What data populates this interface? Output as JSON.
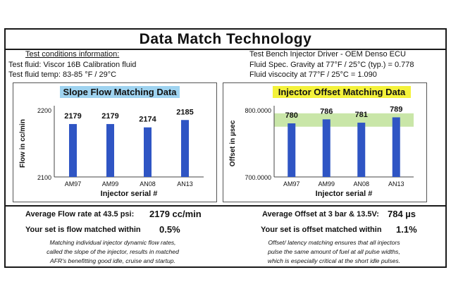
{
  "title": "Data Match Technology",
  "info": {
    "left": {
      "header": "Test conditions information:",
      "line1": "Test fluid: Viscor 16B Calibration fluid",
      "line2": "Test fluid temp: 83-85 °F / 29°C"
    },
    "right": {
      "line1": "Test Bench Injector Driver - OEM Denso ECU",
      "line2": "Fluid Spec. Gravity at 77°F / 25°C (typ.) = 0.778",
      "line3": "Fluid viscocity at 77°F / 25°C = 1.090"
    }
  },
  "colors": {
    "bar": "#2f55c4",
    "slope_title_bg": "#9fd3f0",
    "offset_title_bg": "#f4f23a",
    "offset_band": "#c9e6a8",
    "frame": "#1a1a1a"
  },
  "chart_data": [
    {
      "type": "bar",
      "title": "Slope Flow Matching Data",
      "xlabel": "Injector serial #",
      "ylabel": "Flow in cc/min",
      "categories": [
        "AM97",
        "AM99",
        "AN08",
        "AN13"
      ],
      "values": [
        2179,
        2179,
        2174,
        2185
      ],
      "data_labels": [
        "2179",
        "2179",
        "2174",
        "2185"
      ],
      "ylim": [
        2100,
        2200
      ],
      "yticks": [
        "2200",
        "2100"
      ],
      "grid": false
    },
    {
      "type": "bar",
      "title": "Injector Offset Matching Data",
      "xlabel": "Injector serial #",
      "ylabel": "Offset in µsec",
      "categories": [
        "AM97",
        "AM99",
        "AN08",
        "AN13"
      ],
      "values": [
        780,
        786,
        781,
        789
      ],
      "data_labels": [
        "780",
        "786",
        "781",
        "789"
      ],
      "ylim": [
        700,
        800
      ],
      "yticks": [
        "800.0000",
        "700.0000"
      ],
      "grid": false,
      "highlight_band": [
        775,
        795
      ]
    }
  ],
  "stats": {
    "left": {
      "avg_label": "Average Flow rate at 43.5 psi:",
      "avg_value": "2179 cc/min",
      "match_label": "Your set is flow matched within",
      "match_value": "0.5%",
      "note_line1": "Matching individual injector dynamic flow rates,",
      "note_line2": "called the slope of the injector, results in matched",
      "note_line3": "AFR's benefitting good idle, cruise and startup."
    },
    "right": {
      "avg_label": "Average Offset at 3 bar & 13.5V:",
      "avg_value": "784 µs",
      "match_label": "Your set is offset matched within",
      "match_value": "1.1%",
      "note_line1": "Offset/ latency matching ensures that all injectors",
      "note_line2": "pulse the same amount of fuel at all pulse widths,",
      "note_line3": "which is especially critical at the short idle pulses."
    }
  }
}
